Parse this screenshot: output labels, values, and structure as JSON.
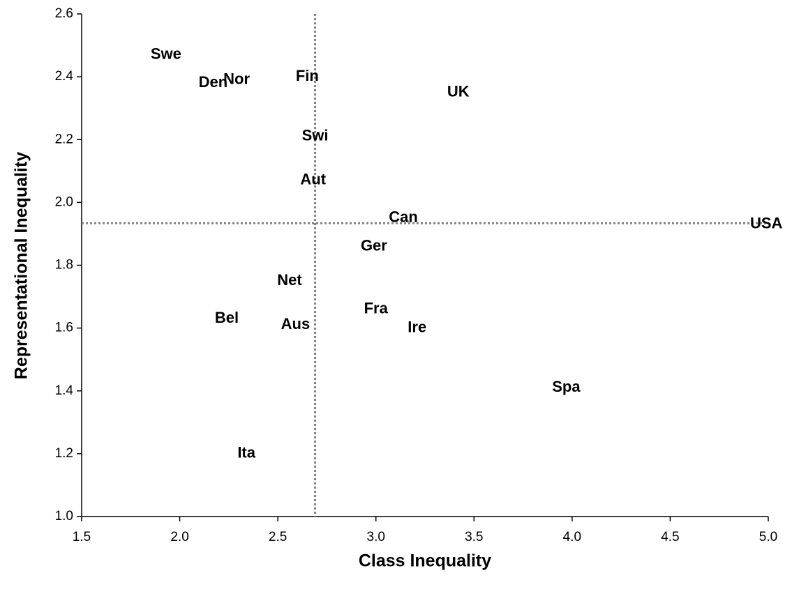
{
  "chart_data": {
    "type": "scatter",
    "xlabel": "Class Inequality",
    "ylabel": "Representational Inequality",
    "points": [
      {
        "label": "Swe",
        "x": 1.93,
        "y": 2.47
      },
      {
        "label": "Den",
        "x": 2.17,
        "y": 2.38
      },
      {
        "label": "Nor",
        "x": 2.29,
        "y": 2.39
      },
      {
        "label": "Fin",
        "x": 2.65,
        "y": 2.4
      },
      {
        "label": "UK",
        "x": 3.42,
        "y": 2.35
      },
      {
        "label": "Swi",
        "x": 2.69,
        "y": 2.21
      },
      {
        "label": "Aut",
        "x": 2.68,
        "y": 2.07
      },
      {
        "label": "Can",
        "x": 3.14,
        "y": 1.95
      },
      {
        "label": "USA",
        "x": 4.99,
        "y": 1.93
      },
      {
        "label": "Ger",
        "x": 2.99,
        "y": 1.86
      },
      {
        "label": "Net",
        "x": 2.56,
        "y": 1.75
      },
      {
        "label": "Fra",
        "x": 3.0,
        "y": 1.66
      },
      {
        "label": "Bel",
        "x": 2.24,
        "y": 1.63
      },
      {
        "label": "Aus",
        "x": 2.59,
        "y": 1.61
      },
      {
        "label": "Ire",
        "x": 3.21,
        "y": 1.6
      },
      {
        "label": "Spa",
        "x": 3.97,
        "y": 1.41
      },
      {
        "label": "Ita",
        "x": 2.34,
        "y": 1.2
      }
    ],
    "xref": 2.69,
    "yref": 1.934,
    "xlim": [
      1.5,
      5.0
    ],
    "xticks": [
      {
        "value": 1.5,
        "label": "1.5"
      },
      {
        "value": 2,
        "label": "2.0"
      },
      {
        "value": 2.5,
        "label": "2.5"
      },
      {
        "value": 3,
        "label": "3.0"
      },
      {
        "value": 3.5,
        "label": "3.5"
      },
      {
        "value": 4,
        "label": "4.0"
      },
      {
        "value": 4.5,
        "label": "4.5"
      },
      {
        "value": 5,
        "label": "5.0"
      }
    ],
    "ylim": [
      1.0,
      2.6
    ],
    "yticks": [
      {
        "value": 1,
        "label": "1.0"
      },
      {
        "value": 1.2,
        "label": "1.2"
      },
      {
        "value": 1.4,
        "label": "1.4"
      },
      {
        "value": 1.6,
        "label": "1.6"
      },
      {
        "value": 1.8,
        "label": "1.8"
      },
      {
        "value": 2,
        "label": "2.0"
      },
      {
        "value": 2.2,
        "label": "2.2"
      },
      {
        "value": 2.4,
        "label": "2.4"
      },
      {
        "value": 2.6,
        "label": "2.6"
      }
    ],
    "grid": false
  }
}
